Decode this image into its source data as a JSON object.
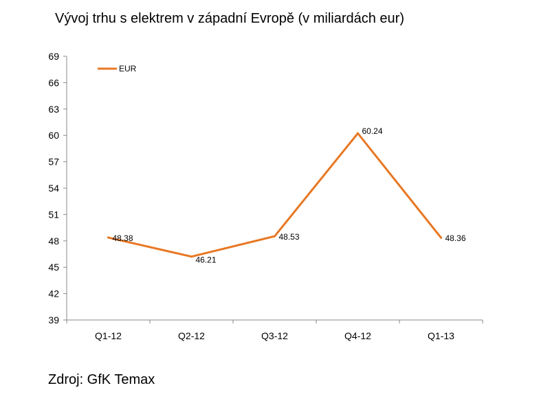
{
  "title": "Vývoj trhu s elektrem v západní Evropě (v miliardách eur)",
  "source": "Zdroj: GfK Temax",
  "colors": {
    "series": "#E87722",
    "axis": "#888888"
  },
  "chart_data": {
    "type": "line",
    "title": "Vývoj trhu s elektrem v západní Evropě (v miliardách eur)",
    "xlabel": "",
    "ylabel": "",
    "categories": [
      "Q1-12",
      "Q2-12",
      "Q3-12",
      "Q4-12",
      "Q1-13"
    ],
    "series": [
      {
        "name": "EUR",
        "values": [
          48.38,
          46.21,
          48.53,
          60.24,
          48.36
        ],
        "labels": [
          "48.38",
          "46.21",
          "48.53",
          "60.24",
          "48.36"
        ]
      }
    ],
    "ylim": [
      39,
      69
    ],
    "yticks": [
      "39",
      "42",
      "45",
      "48",
      "51",
      "54",
      "57",
      "60",
      "63",
      "66",
      "69"
    ],
    "grid": false,
    "legend": "top-left"
  }
}
